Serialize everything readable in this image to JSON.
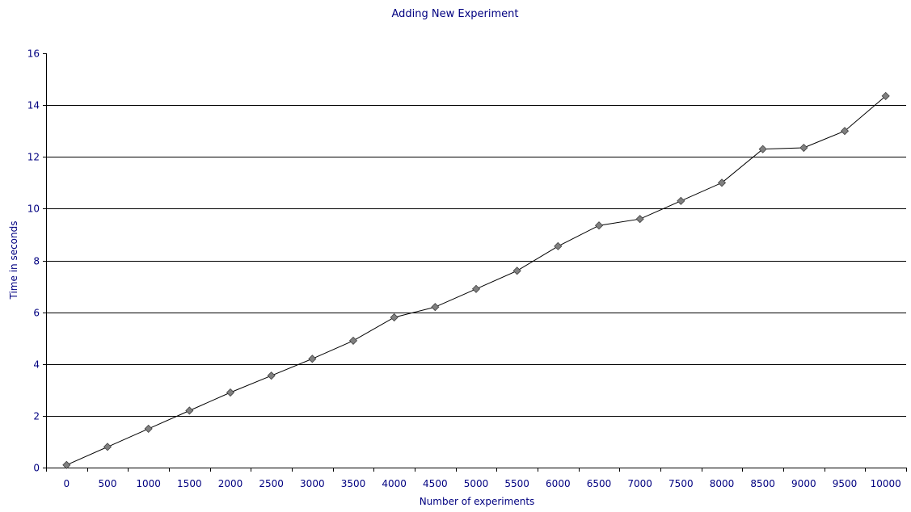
{
  "chart_data": {
    "type": "line",
    "title": "Adding New Experiment",
    "xlabel": "Number of experiments",
    "ylabel": "Time in seconds",
    "categories": [
      "0",
      "500",
      "1000",
      "1500",
      "2000",
      "2500",
      "3000",
      "3500",
      "4000",
      "4500",
      "5000",
      "5500",
      "6000",
      "6500",
      "7000",
      "7500",
      "8000",
      "8500",
      "9000",
      "9500",
      "10000"
    ],
    "series": [
      {
        "values": [
          0.1,
          0.8,
          1.5,
          2.2,
          2.9,
          3.55,
          4.2,
          4.9,
          5.8,
          6.2,
          6.9,
          7.6,
          8.55,
          9.35,
          9.6,
          10.3,
          11.0,
          12.3,
          12.35,
          13.0,
          14.35
        ]
      }
    ],
    "ylim": [
      0,
      16
    ],
    "yticks": [
      0,
      2,
      4,
      6,
      8,
      10,
      12,
      14,
      16
    ],
    "grid": true,
    "legend": "none",
    "colors": {
      "text": "#000080",
      "grid": "#000000",
      "line": "#000000",
      "marker_fill": "#808080",
      "marker_stroke": "#404040"
    }
  }
}
